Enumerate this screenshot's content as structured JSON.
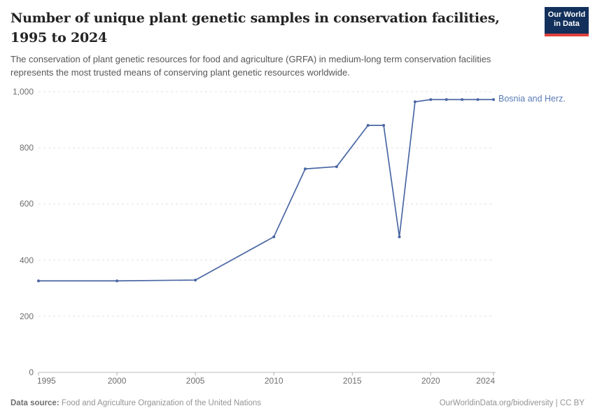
{
  "header": {
    "title_lines": [
      "Number of unique plant genetic samples in conservation facilities,",
      "1995 to 2024"
    ],
    "subtitle_lines": [
      "The conservation of plant genetic resources for food and agriculture (GRFA) in medium-long term conservation facilities",
      "represents the most trusted means of conserving plant genetic resources worldwide."
    ],
    "logo": {
      "line1": "Our World",
      "line2": "in Data",
      "bg_color": "#12305B",
      "accent_color": "#E0403C"
    }
  },
  "chart_data": {
    "type": "line",
    "title": "Number of unique plant genetic samples in conservation facilities, 1995 to 2024",
    "xlabel": "",
    "ylabel": "",
    "xlim": [
      1995,
      2024
    ],
    "ylim": [
      0,
      1000
    ],
    "grid": "horizontal-dashed",
    "legend_position": "right-of-line-end",
    "x_ticks": [
      {
        "label": "1995",
        "value": 1995
      },
      {
        "label": "2000",
        "value": 2000
      },
      {
        "label": "2005",
        "value": 2005
      },
      {
        "label": "2010",
        "value": 2010
      },
      {
        "label": "2015",
        "value": 2015
      },
      {
        "label": "2020",
        "value": 2020
      },
      {
        "label": "2024",
        "value": 2024
      }
    ],
    "y_ticks": [
      {
        "label": "0",
        "value": 0
      },
      {
        "label": "200",
        "value": 200
      },
      {
        "label": "400",
        "value": 400
      },
      {
        "label": "600",
        "value": 600
      },
      {
        "label": "800",
        "value": 800
      },
      {
        "label": "1,000",
        "value": 1000
      }
    ],
    "series": [
      {
        "name": "Bosnia and Herz.",
        "color": "#4A67A4",
        "points": [
          [
            1995,
            326
          ],
          [
            2000,
            326
          ],
          [
            2005,
            329
          ],
          [
            2010,
            483
          ],
          [
            2012,
            725
          ],
          [
            2014,
            733
          ],
          [
            2016,
            880
          ],
          [
            2017,
            880
          ],
          [
            2018,
            483
          ],
          [
            2019,
            964
          ],
          [
            2020,
            972
          ],
          [
            2021,
            972
          ],
          [
            2022,
            972
          ],
          [
            2023,
            972
          ],
          [
            2024,
            972
          ]
        ]
      }
    ]
  },
  "footer": {
    "source_label": "Data source:",
    "source_text": "Food and Agriculture Organization of the United Nations",
    "attribution": "OurWorldinData.org/biodiversity | CC BY"
  },
  "colors": {
    "gridline": "#E0E0E0",
    "axis_line": "#BDBDBD",
    "tick_mark": "#ADADAD"
  }
}
